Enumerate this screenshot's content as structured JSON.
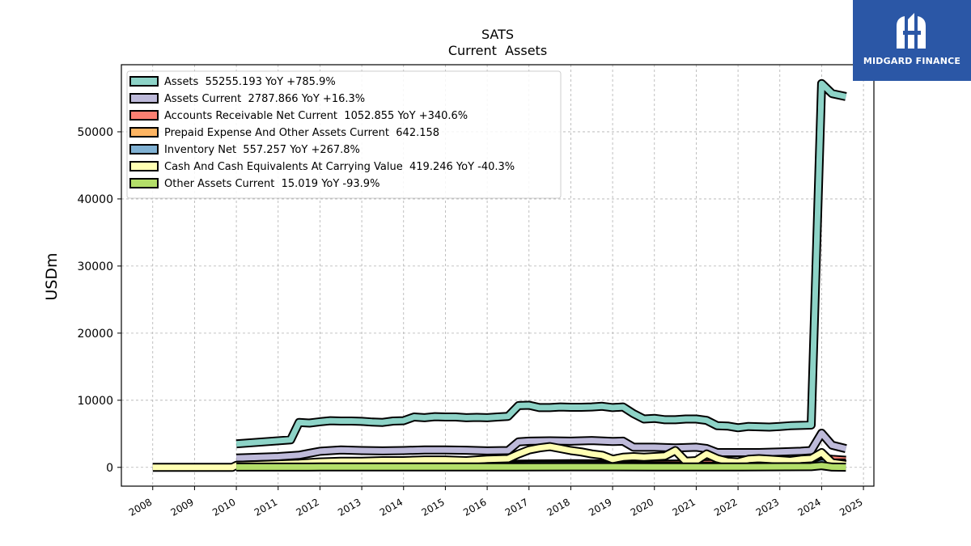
{
  "chart_data": {
    "type": "area",
    "title": "SATS",
    "subtitle": "Current  Assets",
    "ylabel": "USDm",
    "xlabel": "",
    "xlim": [
      2007.25,
      2025.25
    ],
    "ylim": [
      -2800,
      60000
    ],
    "yticks": [
      0,
      10000,
      20000,
      30000,
      40000,
      50000
    ],
    "ytick_labels": [
      "0",
      "10000",
      "20000",
      "30000",
      "40000",
      "50000"
    ],
    "xticks": [
      2008,
      2009,
      2010,
      2011,
      2012,
      2013,
      2014,
      2015,
      2016,
      2017,
      2018,
      2019,
      2020,
      2021,
      2022,
      2023,
      2024,
      2025
    ],
    "xtick_labels": [
      "2008",
      "2009",
      "2010",
      "2011",
      "2012",
      "2013",
      "2014",
      "2015",
      "2016",
      "2017",
      "2018",
      "2019",
      "2020",
      "2021",
      "2022",
      "2023",
      "2024",
      "2025"
    ],
    "grid": true,
    "legend_position": "top-left",
    "legend": [
      "Assets  55255.193 YoY +785.9%",
      "Assets Current  2787.866 YoY +16.3%",
      "Accounts Receivable Net Current  1052.855 YoY +340.6%",
      "Prepaid Expense And Other Assets Current  642.158",
      "Inventory Net  557.257 YoY +267.8%",
      "Cash And Cash Equivalents At Carrying Value  419.246 YoY -40.3%",
      "Other Assets Current  15.019 YoY -93.9%"
    ],
    "series": [
      {
        "name": "Assets",
        "color": "#8dd3c7",
        "x": [
          2010.0,
          2011.3,
          2011.5,
          2011.75,
          2012.0,
          2012.25,
          2012.5,
          2012.75,
          2013.0,
          2013.25,
          2013.5,
          2013.75,
          2014.0,
          2014.25,
          2014.5,
          2014.75,
          2015.0,
          2015.25,
          2015.5,
          2015.75,
          2016.0,
          2016.25,
          2016.5,
          2016.75,
          2017.0,
          2017.25,
          2017.5,
          2017.75,
          2018.0,
          2018.25,
          2018.5,
          2018.75,
          2019.0,
          2019.25,
          2019.5,
          2019.75,
          2020.0,
          2020.25,
          2020.5,
          2020.75,
          2021.0,
          2021.25,
          2021.5,
          2021.75,
          2022.0,
          2022.25,
          2022.5,
          2022.75,
          2023.0,
          2023.25,
          2023.5,
          2023.75,
          2024.0,
          2024.25,
          2024.58
        ],
        "values": [
          3500,
          4100,
          6700,
          6600,
          6800,
          6950,
          6900,
          6900,
          6850,
          6750,
          6700,
          6900,
          6950,
          7500,
          7400,
          7550,
          7500,
          7500,
          7400,
          7450,
          7400,
          7500,
          7600,
          9200,
          9250,
          8900,
          8900,
          9000,
          8950,
          8950,
          9000,
          9100,
          8900,
          9000,
          8000,
          7200,
          7300,
          7100,
          7100,
          7200,
          7200,
          7000,
          6200,
          6150,
          5900,
          6100,
          6050,
          6000,
          6100,
          6200,
          6250,
          6300,
          57200,
          55700,
          55255.193
        ]
      },
      {
        "name": "Assets Current",
        "color": "#bebada",
        "x": [
          2010.0,
          2011.0,
          2011.5,
          2011.75,
          2012.0,
          2012.5,
          2013.0,
          2013.5,
          2014.0,
          2014.5,
          2015.0,
          2015.5,
          2016.0,
          2016.5,
          2016.75,
          2017.0,
          2017.5,
          2018.0,
          2018.5,
          2019.0,
          2019.25,
          2019.5,
          2020.0,
          2020.5,
          2021.0,
          2021.25,
          2021.5,
          2022.0,
          2022.5,
          2023.0,
          2023.5,
          2023.75,
          2024.0,
          2024.25,
          2024.58
        ],
        "values": [
          1400,
          1600,
          1800,
          2100,
          2400,
          2600,
          2500,
          2450,
          2500,
          2600,
          2600,
          2550,
          2450,
          2500,
          3800,
          3900,
          3950,
          3900,
          4000,
          3850,
          3900,
          3000,
          3000,
          2900,
          3000,
          2800,
          2200,
          2200,
          2200,
          2300,
          2400,
          2500,
          5100,
          3300,
          2787.866
        ]
      },
      {
        "name": "Accounts Receivable Net Current",
        "color": "#fb8072",
        "x": [
          2010.0,
          2012.0,
          2014.0,
          2016.0,
          2017.0,
          2018.0,
          2019.0,
          2020.0,
          2021.0,
          2022.0,
          2023.0,
          2023.75,
          2024.0,
          2024.25,
          2024.58
        ],
        "values": [
          300,
          350,
          400,
          420,
          500,
          550,
          520,
          480,
          520,
          600,
          650,
          700,
          1400,
          1200,
          1052.855
        ]
      },
      {
        "name": "Prepaid Expense And Other Assets Current",
        "color": "#fdb462",
        "x": [
          2023.5,
          2023.75,
          2024.0,
          2024.25,
          2024.58
        ],
        "values": [
          500,
          560,
          700,
          650,
          642.158
        ]
      },
      {
        "name": "Inventory Net",
        "color": "#80b1d3",
        "x": [
          2010.0,
          2012.0,
          2014.0,
          2016.0,
          2017.0,
          2018.0,
          2019.0,
          2020.0,
          2021.0,
          2022.0,
          2023.0,
          2023.75,
          2024.0,
          2024.25,
          2024.58
        ],
        "values": [
          100,
          150,
          200,
          250,
          300,
          320,
          300,
          250,
          200,
          180,
          160,
          150,
          600,
          580,
          557.257
        ]
      },
      {
        "name": "Cash And Cash Equivalents At Carrying Value",
        "color": "#ffffb3",
        "x": [
          2008.0,
          2009.9,
          2010.0,
          2010.5,
          2011.0,
          2011.5,
          2012.0,
          2012.5,
          2013.0,
          2013.5,
          2014.0,
          2014.5,
          2015.0,
          2015.5,
          2016.0,
          2016.5,
          2016.75,
          2017.0,
          2017.25,
          2017.5,
          2017.75,
          2018.0,
          2018.25,
          2018.5,
          2018.75,
          2019.0,
          2019.25,
          2019.5,
          2019.75,
          2020.0,
          2020.25,
          2020.5,
          2020.75,
          2021.0,
          2021.25,
          2021.5,
          2021.75,
          2022.0,
          2022.25,
          2022.5,
          2022.75,
          2023.0,
          2023.25,
          2023.5,
          2023.75,
          2024.0,
          2024.25,
          2024.58
        ],
        "values": [
          0,
          0,
          300,
          400,
          500,
          600,
          800,
          900,
          900,
          1000,
          1000,
          1100,
          1100,
          1000,
          1200,
          1300,
          2000,
          2600,
          2900,
          3100,
          2800,
          2500,
          2300,
          2000,
          1800,
          1200,
          1500,
          1600,
          1500,
          1600,
          1700,
          2500,
          900,
          1000,
          2000,
          1300,
          900,
          800,
          1200,
          1300,
          1200,
          1100,
          1000,
          1200,
          1300,
          2200,
          700,
          419.246
        ]
      },
      {
        "name": "Other Assets Current",
        "color": "#b3de69",
        "x": [
          2010.0,
          2012.0,
          2014.0,
          2016.0,
          2018.0,
          2020.0,
          2022.0,
          2023.75,
          2024.0,
          2024.25,
          2024.58
        ],
        "values": [
          50,
          60,
          70,
          60,
          80,
          70,
          60,
          100,
          250,
          40,
          15.019
        ]
      }
    ]
  },
  "branding": {
    "logo_text": "MIDGARD FINANCE",
    "logo_color": "#2b57a6"
  }
}
